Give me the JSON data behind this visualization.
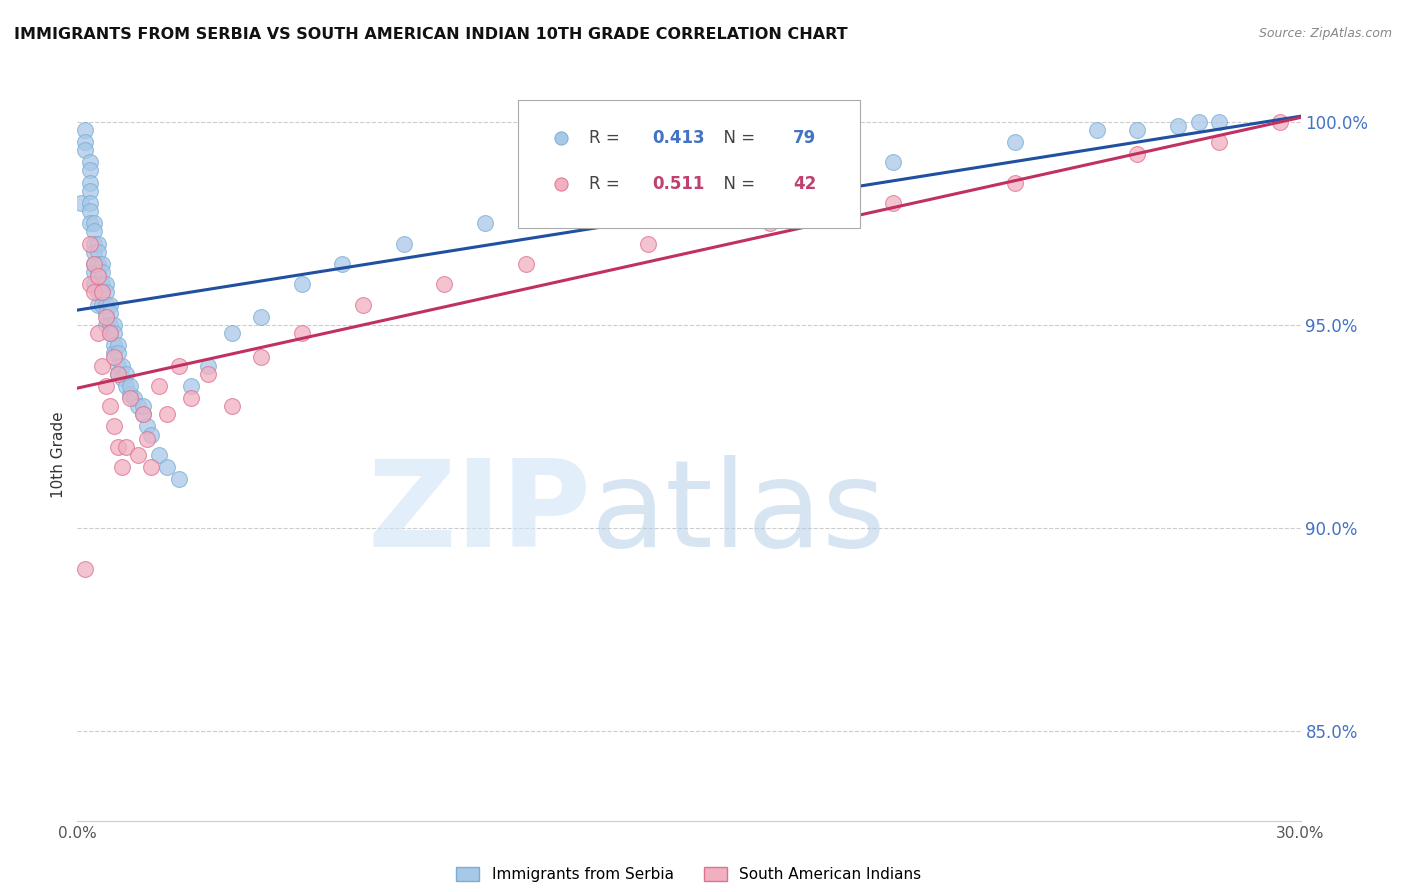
{
  "title": "IMMIGRANTS FROM SERBIA VS SOUTH AMERICAN INDIAN 10TH GRADE CORRELATION CHART",
  "source": "Source: ZipAtlas.com",
  "ylabel": "10th Grade",
  "xlim": [
    0.0,
    0.3
  ],
  "ylim": [
    0.828,
    1.008
  ],
  "xticks": [
    0.0,
    0.05,
    0.1,
    0.15,
    0.2,
    0.25,
    0.3
  ],
  "yticks": [
    0.85,
    0.9,
    0.95,
    1.0
  ],
  "yticklabels": [
    "85.0%",
    "90.0%",
    "95.0%",
    "100.0%"
  ],
  "right_ytick_color": "#4472c4",
  "serbia_color": "#a8c8e8",
  "serbia_edge": "#7aaed4",
  "india_color": "#f0b0c0",
  "india_edge": "#e07090",
  "serbia_R": 0.413,
  "serbia_N": 79,
  "india_R": 0.511,
  "india_N": 42,
  "legend_color_R_serbia": "#4472c4",
  "legend_color_N_serbia": "#4472c4",
  "legend_color_R_india": "#c04070",
  "legend_color_N_india": "#c04070",
  "trendline_serbia_color": "#2050a0",
  "trendline_india_color": "#c03060",
  "serbia_x": [
    0.001,
    0.002,
    0.002,
    0.002,
    0.003,
    0.003,
    0.003,
    0.003,
    0.003,
    0.003,
    0.003,
    0.004,
    0.004,
    0.004,
    0.004,
    0.004,
    0.004,
    0.004,
    0.005,
    0.005,
    0.005,
    0.005,
    0.005,
    0.005,
    0.005,
    0.006,
    0.006,
    0.006,
    0.006,
    0.006,
    0.007,
    0.007,
    0.007,
    0.007,
    0.007,
    0.008,
    0.008,
    0.008,
    0.008,
    0.009,
    0.009,
    0.009,
    0.009,
    0.01,
    0.01,
    0.01,
    0.01,
    0.011,
    0.011,
    0.012,
    0.012,
    0.013,
    0.013,
    0.014,
    0.015,
    0.016,
    0.016,
    0.017,
    0.018,
    0.02,
    0.022,
    0.025,
    0.028,
    0.032,
    0.038,
    0.045,
    0.055,
    0.065,
    0.08,
    0.1,
    0.13,
    0.16,
    0.2,
    0.23,
    0.25,
    0.26,
    0.27,
    0.275,
    0.28
  ],
  "serbia_y": [
    0.98,
    0.998,
    0.995,
    0.993,
    0.99,
    0.988,
    0.985,
    0.983,
    0.98,
    0.978,
    0.975,
    0.975,
    0.973,
    0.97,
    0.968,
    0.965,
    0.963,
    0.96,
    0.97,
    0.968,
    0.965,
    0.963,
    0.96,
    0.958,
    0.955,
    0.965,
    0.963,
    0.96,
    0.958,
    0.955,
    0.96,
    0.958,
    0.955,
    0.953,
    0.95,
    0.955,
    0.953,
    0.95,
    0.948,
    0.95,
    0.948,
    0.945,
    0.943,
    0.945,
    0.943,
    0.94,
    0.938,
    0.94,
    0.937,
    0.938,
    0.935,
    0.933,
    0.935,
    0.932,
    0.93,
    0.928,
    0.93,
    0.925,
    0.923,
    0.918,
    0.915,
    0.912,
    0.935,
    0.94,
    0.948,
    0.952,
    0.96,
    0.965,
    0.97,
    0.975,
    0.98,
    0.985,
    0.99,
    0.995,
    0.998,
    0.998,
    0.999,
    1.0,
    1.0
  ],
  "india_x": [
    0.002,
    0.003,
    0.003,
    0.004,
    0.004,
    0.005,
    0.005,
    0.006,
    0.006,
    0.007,
    0.007,
    0.008,
    0.008,
    0.009,
    0.009,
    0.01,
    0.01,
    0.011,
    0.012,
    0.013,
    0.015,
    0.016,
    0.017,
    0.018,
    0.02,
    0.022,
    0.025,
    0.028,
    0.032,
    0.038,
    0.045,
    0.055,
    0.07,
    0.09,
    0.11,
    0.14,
    0.17,
    0.2,
    0.23,
    0.26,
    0.28,
    0.295
  ],
  "india_y": [
    0.89,
    0.96,
    0.97,
    0.958,
    0.965,
    0.948,
    0.962,
    0.94,
    0.958,
    0.935,
    0.952,
    0.93,
    0.948,
    0.925,
    0.942,
    0.92,
    0.938,
    0.915,
    0.92,
    0.932,
    0.918,
    0.928,
    0.922,
    0.915,
    0.935,
    0.928,
    0.94,
    0.932,
    0.938,
    0.93,
    0.942,
    0.948,
    0.955,
    0.96,
    0.965,
    0.97,
    0.975,
    0.98,
    0.985,
    0.992,
    0.995,
    1.0
  ]
}
